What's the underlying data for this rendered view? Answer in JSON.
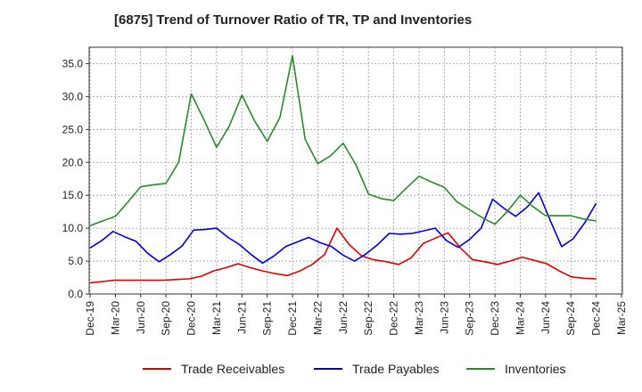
{
  "chart_data": {
    "type": "line",
    "title": "[6875]  Trend of Turnover Ratio of TR, TP and Inventories",
    "xlabel": "",
    "ylabel": "",
    "ylim": [
      0,
      37.5
    ],
    "yticks": [
      "0.0",
      "5.0",
      "10.0",
      "15.0",
      "20.0",
      "25.0",
      "30.0",
      "35.0"
    ],
    "ytick_values": [
      0,
      5,
      10,
      15,
      20,
      25,
      30,
      35
    ],
    "xtick_labels": [
      "Dec-19",
      "Mar-20",
      "Jun-20",
      "Sep-20",
      "Dec-20",
      "Mar-21",
      "Jun-21",
      "Sep-21",
      "Dec-21",
      "Mar-22",
      "Jun-22",
      "Sep-22",
      "Dec-22",
      "Mar-23",
      "Jun-23",
      "Sep-23",
      "Dec-23",
      "Mar-24",
      "Jun-24",
      "Sep-24",
      "Dec-24",
      "Mar-25"
    ],
    "grid": true,
    "legend_position": "bottom",
    "series": [
      {
        "name": "Trade Receivables",
        "color": "#e00000",
        "values": [
          1.7,
          1.9,
          2.1,
          2.1,
          2.1,
          2.1,
          2.1,
          2.2,
          2.3,
          2.7,
          3.5,
          4.0,
          4.6,
          4.0,
          3.5,
          3.1,
          2.8,
          3.5,
          4.5,
          6.0,
          10.0,
          7.5,
          5.8,
          5.2,
          4.9,
          4.5,
          5.5,
          7.7,
          8.5,
          9.3,
          7.0,
          5.2,
          4.9,
          4.5,
          5.0,
          5.6,
          5.1,
          4.6,
          3.5,
          2.6,
          2.4,
          2.3
        ]
      },
      {
        "name": "Trade Payables",
        "color": "#0000dd",
        "values": [
          7.0,
          8.1,
          9.5,
          8.7,
          8.0,
          6.2,
          4.9,
          6.0,
          7.3,
          9.7,
          9.8,
          10.0,
          8.6,
          7.5,
          6.0,
          4.7,
          5.8,
          7.2,
          7.9,
          8.6,
          7.8,
          7.2,
          5.9,
          5.0,
          6.1,
          7.5,
          9.2,
          9.1,
          9.2,
          9.6,
          10.0,
          8.1,
          7.1,
          8.3,
          10.0,
          14.4,
          13.0,
          11.8,
          13.2,
          15.4,
          11.2,
          7.2,
          8.4,
          10.8,
          13.8
        ]
      },
      {
        "name": "Inventories",
        "color": "#2a8a2a",
        "values": [
          10.4,
          11.1,
          11.8,
          14.0,
          16.3,
          16.6,
          16.8,
          20.0,
          30.4,
          26.5,
          22.3,
          25.5,
          30.2,
          26.3,
          23.2,
          26.8,
          36.2,
          23.5,
          19.8,
          21.0,
          22.9,
          19.7,
          15.2,
          14.5,
          14.2,
          16.1,
          17.9,
          17.0,
          16.2,
          14.0,
          12.8,
          11.6,
          10.6,
          12.6,
          15.0,
          13.3,
          11.9,
          11.9,
          11.9,
          11.4,
          11.1
        ]
      }
    ]
  }
}
